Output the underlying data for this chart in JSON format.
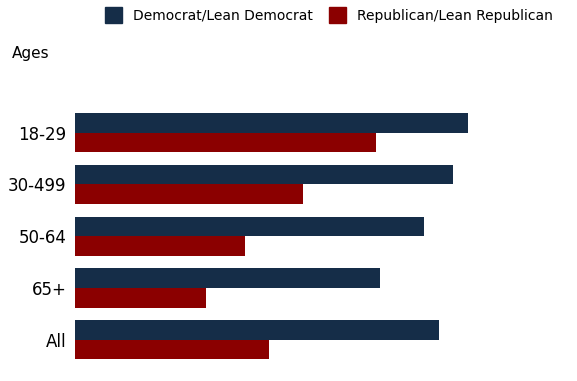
{
  "categories": [
    "18-29",
    "30-499",
    "50-64",
    "65+",
    "All"
  ],
  "democrat_values": [
    81,
    78,
    72,
    63,
    75
  ],
  "republican_values": [
    62,
    47,
    35,
    27,
    40
  ],
  "democrat_color": "#152d48",
  "republican_color": "#8b0000",
  "legend_labels": [
    "Democrat/Lean Democrat",
    "Republican/Lean Republican"
  ],
  "ages_label": "Ages",
  "xlim": [
    0,
    100
  ],
  "bar_height": 0.38,
  "figsize": [
    5.77,
    3.81
  ],
  "dpi": 100,
  "background_color": "#ffffff"
}
